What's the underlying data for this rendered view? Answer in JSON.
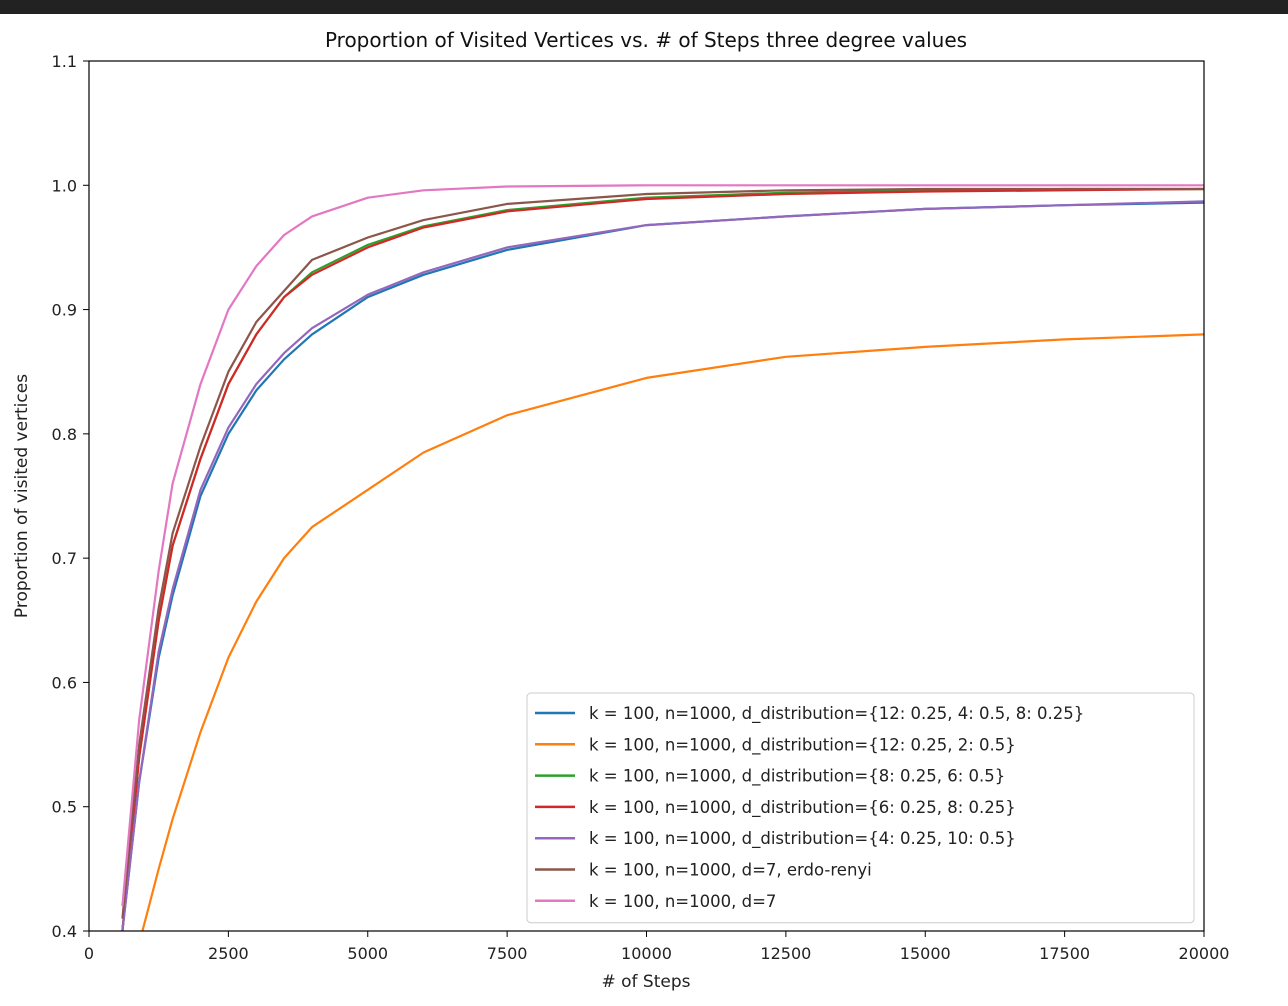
{
  "chart_data": {
    "type": "line",
    "title": "Proportion of Visited Vertices vs. # of Steps three degree values",
    "xlabel": "# of Steps",
    "ylabel": "Proportion of visited vertices",
    "xlim": [
      0,
      20000
    ],
    "ylim": [
      0.4,
      1.1
    ],
    "xticks": [
      "0",
      "2500",
      "5000",
      "7500",
      "10000",
      "12500",
      "15000",
      "17500",
      "20000"
    ],
    "yticks": [
      "0.4",
      "0.5",
      "0.6",
      "0.7",
      "0.8",
      "0.9",
      "1.0",
      "1.1"
    ],
    "grid": false,
    "legend_position": "lower-right",
    "x": [
      600,
      900,
      1250,
      1500,
      2000,
      2500,
      3000,
      3500,
      4000,
      5000,
      6000,
      7500,
      10000,
      12500,
      15000,
      17500,
      20000
    ],
    "series": [
      {
        "name": "k = 100, n=1000, d_distribution={12: 0.25, 4: 0.5, 8: 0.25}",
        "color": "#1f77b4",
        "values": [
          0.4,
          0.52,
          0.62,
          0.67,
          0.75,
          0.8,
          0.835,
          0.86,
          0.88,
          0.91,
          0.928,
          0.948,
          0.968,
          0.975,
          0.981,
          0.984,
          0.986
        ]
      },
      {
        "name": "k = 100, n=1000, d_distribution={12: 0.25, 2: 0.5}",
        "color": "#ff7f0e",
        "values": [
          0.33,
          0.39,
          0.45,
          0.49,
          0.56,
          0.62,
          0.665,
          0.7,
          0.725,
          0.755,
          0.785,
          0.815,
          0.845,
          0.862,
          0.87,
          0.876,
          0.88
        ]
      },
      {
        "name": "k = 100, n=1000, d_distribution={8: 0.25, 6: 0.5}",
        "color": "#2ca02c",
        "values": [
          0.4,
          0.54,
          0.65,
          0.71,
          0.78,
          0.84,
          0.88,
          0.91,
          0.93,
          0.952,
          0.967,
          0.98,
          0.99,
          0.994,
          0.996,
          0.997,
          0.997
        ]
      },
      {
        "name": "k = 100, n=1000, d_distribution={6: 0.25, 8: 0.25}",
        "color": "#d62728",
        "values": [
          0.4,
          0.54,
          0.65,
          0.71,
          0.78,
          0.84,
          0.88,
          0.91,
          0.928,
          0.95,
          0.966,
          0.979,
          0.989,
          0.993,
          0.995,
          0.996,
          0.997
        ]
      },
      {
        "name": "k = 100, n=1000, d_distribution={4: 0.25, 10: 0.5}",
        "color": "#9467bd",
        "values": [
          0.4,
          0.52,
          0.625,
          0.675,
          0.755,
          0.805,
          0.84,
          0.865,
          0.885,
          0.912,
          0.93,
          0.95,
          0.968,
          0.975,
          0.981,
          0.984,
          0.987
        ]
      },
      {
        "name": "k = 100, n=1000, d=7, erdo-renyi",
        "color": "#8c564b",
        "values": [
          0.41,
          0.55,
          0.66,
          0.72,
          0.79,
          0.85,
          0.89,
          0.915,
          0.94,
          0.958,
          0.972,
          0.985,
          0.993,
          0.996,
          0.997,
          0.997,
          0.997
        ]
      },
      {
        "name": "k = 100, n=1000, d=7",
        "color": "#e377c2",
        "values": [
          0.42,
          0.57,
          0.69,
          0.76,
          0.84,
          0.9,
          0.935,
          0.96,
          0.975,
          0.99,
          0.996,
          0.999,
          1.0,
          1.0,
          1.0,
          1.0,
          1.0
        ]
      }
    ]
  }
}
